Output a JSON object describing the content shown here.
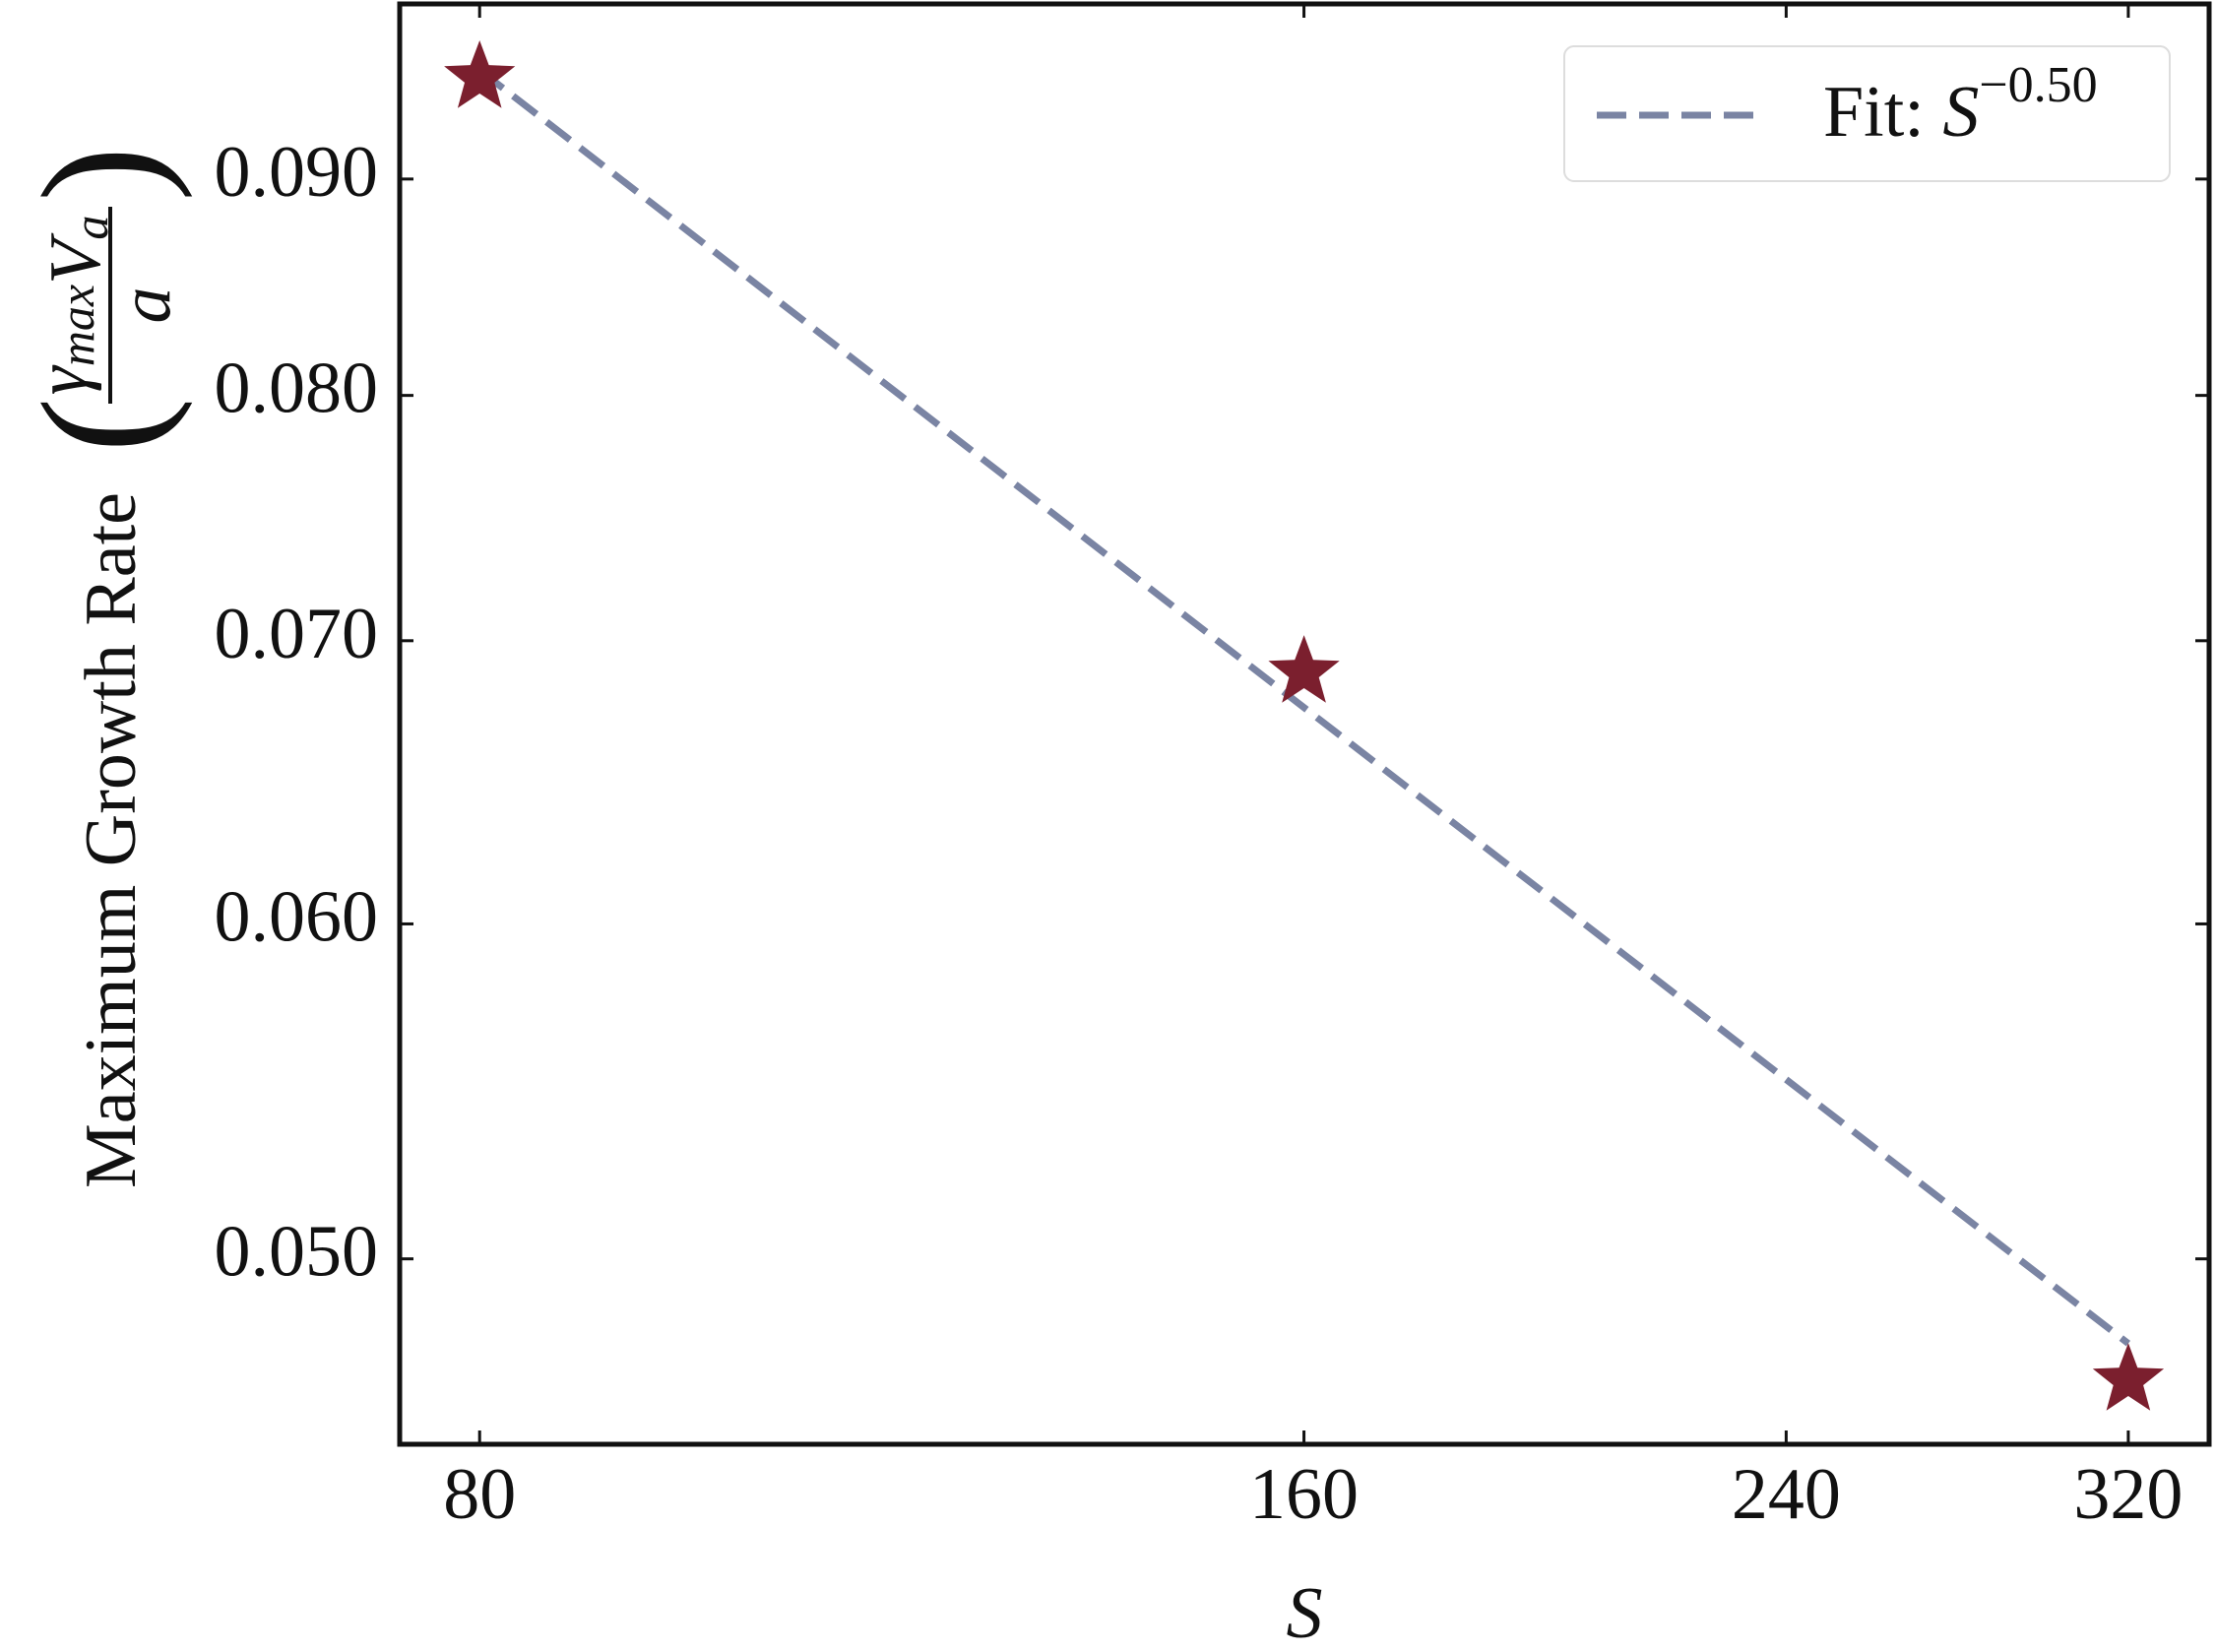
{
  "chart_data": {
    "type": "scatter",
    "xlabel": "S",
    "ylabel": "Maximum Growth Rate",
    "ylabel_units": {
      "numerator": [
        {
          "base": "γ",
          "sub": "max"
        },
        {
          "base": "V",
          "sub": "a"
        }
      ],
      "denominator": "a"
    },
    "xscale": "log",
    "yscale": "log",
    "xlim": [
      74.8,
      342.5
    ],
    "ylim": [
      0.0452,
      0.099
    ],
    "xticks": [
      80,
      160,
      240,
      320
    ],
    "yticks": [
      {
        "value": 0.05,
        "label": "0.050"
      },
      {
        "value": 0.06,
        "label": "0.060"
      },
      {
        "value": 0.07,
        "label": "0.070"
      },
      {
        "value": 0.08,
        "label": "0.080"
      },
      {
        "value": 0.09,
        "label": "0.090"
      }
    ],
    "x": [
      80,
      160,
      320
    ],
    "series": [
      {
        "color": "#7b1f2e",
        "marker": "star",
        "values": [
          0.0951,
          0.0688,
          0.0468
        ]
      },
      {
        "name": "Fit: S−0.50",
        "color": "#7a84a3",
        "line": "dashed",
        "values": [
          0.0955,
          0.0675,
          0.04775
        ]
      }
    ],
    "legend": "upper right"
  }
}
